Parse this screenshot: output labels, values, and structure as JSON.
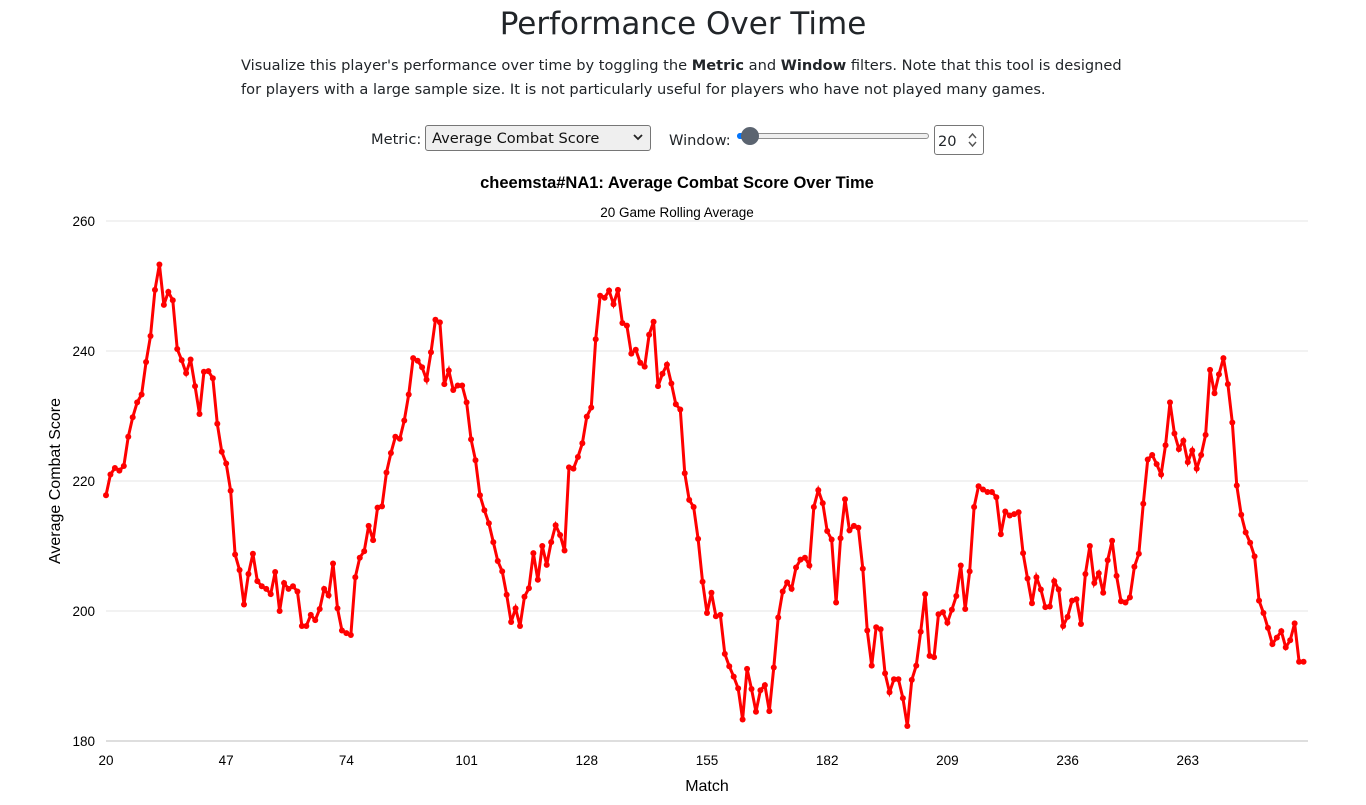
{
  "page": {
    "title": "Performance Over Time",
    "desc_1": "Visualize this player's performance over time by toggling the ",
    "desc_metric": "Metric",
    "desc_2": " and ",
    "desc_window": "Window",
    "desc_3": " filters. Note that this tool is designed for players with a large sample size. It is not particularly useful for players who have not played many games."
  },
  "controls": {
    "metric_label": "Metric:",
    "metric_value": "Average Combat Score",
    "window_label": "Window:",
    "window_value": "20",
    "window_slider_fraction": 0.07
  },
  "colors": {
    "line": "#ff0000",
    "grid": "#e6e6e6",
    "slider_accent": "#0075ff"
  },
  "chart_data": {
    "type": "line",
    "title": "cheemsta#NA1: Average Combat Score Over Time",
    "subtitle": "20 Game Rolling Average",
    "xlabel": "Match",
    "ylabel": "Average Combat Score",
    "ylim": [
      180,
      260
    ],
    "xlim": [
      20,
      290
    ],
    "yticks": [
      180,
      200,
      220,
      240,
      260
    ],
    "xticks": [
      20,
      47,
      74,
      101,
      128,
      155,
      182,
      209,
      236,
      263
    ],
    "grid": true,
    "series": [
      {
        "x_start": 20,
        "values": [
          217.8,
          221.0,
          222.0,
          221.6,
          222.3,
          226.8,
          229.8,
          232.1,
          233.3,
          238.3,
          242.3,
          249.4,
          253.3,
          247.1,
          249.1,
          247.8,
          240.3,
          238.6,
          236.6,
          238.7,
          234.6,
          230.3,
          236.8,
          236.9,
          235.8,
          228.8,
          224.5,
          222.7,
          218.5,
          208.7,
          206.3,
          201.0,
          205.7,
          208.8,
          204.6,
          203.8,
          203.4,
          202.6,
          206.0,
          200.0,
          204.3,
          203.4,
          203.8,
          203.0,
          197.7,
          197.7,
          199.4,
          198.6,
          200.3,
          203.4,
          202.4,
          207.3,
          200.4,
          197.0,
          196.6,
          196.3,
          205.2,
          208.2,
          209.2,
          213.1,
          210.9,
          215.9,
          216.1,
          221.3,
          224.3,
          226.8,
          226.5,
          229.3,
          233.3,
          238.9,
          238.5,
          237.5,
          235.6,
          239.8,
          244.8,
          244.4,
          234.9,
          237.0,
          234.0,
          234.7,
          234.7,
          232.1,
          226.4,
          223.2,
          217.8,
          215.5,
          213.5,
          210.6,
          207.7,
          206.1,
          202.5,
          198.3,
          200.4,
          197.7,
          202.2,
          203.5,
          208.9,
          204.8,
          210.0,
          207.1,
          210.6,
          213.2,
          211.7,
          209.3,
          222.1,
          221.9,
          223.7,
          225.8,
          229.9,
          231.3,
          241.8,
          248.5,
          248.2,
          249.3,
          247.2,
          249.4,
          244.3,
          243.9,
          239.6,
          240.2,
          238.2,
          237.6,
          242.5,
          244.5,
          234.6,
          236.5,
          237.9,
          235.0,
          231.8,
          231.0,
          221.2,
          217.1,
          216.0,
          211.1,
          204.5,
          199.7,
          202.8,
          199.2,
          199.4,
          193.4,
          191.5,
          189.9,
          188.1,
          183.3,
          191.1,
          188.0,
          184.5,
          187.8,
          188.6,
          184.6,
          191.3,
          199.0,
          203.0,
          204.4,
          203.4,
          206.7,
          207.9,
          208.2,
          207.0,
          216.0,
          218.6,
          216.6,
          212.3,
          211.0,
          201.3,
          211.2,
          217.2,
          212.4,
          213.1,
          212.8,
          206.5,
          197.0,
          191.6,
          197.5,
          197.2,
          190.4,
          187.5,
          189.5,
          189.5,
          186.6,
          182.3,
          189.4,
          191.6,
          196.8,
          202.6,
          193.1,
          192.9,
          199.5,
          199.8,
          198.2,
          200.2,
          202.3,
          207.0,
          200.3,
          206.1,
          216.0,
          219.2,
          218.7,
          218.3,
          218.3,
          217.5,
          211.8,
          215.3,
          214.7,
          214.9,
          215.2,
          208.9,
          205.0,
          201.2,
          205.2,
          203.3,
          200.6,
          200.7,
          204.6,
          203.3,
          197.7,
          199.1,
          201.6,
          201.8,
          198.0,
          205.7,
          210.0,
          204.3,
          205.8,
          202.8,
          207.8,
          210.8,
          205.4,
          201.5,
          201.3,
          202.1,
          206.8,
          208.8,
          216.5,
          223.3,
          224.0,
          222.6,
          221.0,
          225.5,
          232.1,
          227.3,
          224.9,
          226.2,
          222.9,
          224.7,
          221.9,
          224.0,
          227.1,
          237.1,
          233.5,
          236.4,
          238.9,
          234.9,
          229.0,
          219.3,
          214.8,
          212.1,
          210.5,
          208.4,
          201.6,
          199.7,
          197.4,
          194.9,
          195.9,
          196.9,
          194.4,
          195.5,
          198.1,
          192.2,
          192.2
        ]
      }
    ]
  }
}
